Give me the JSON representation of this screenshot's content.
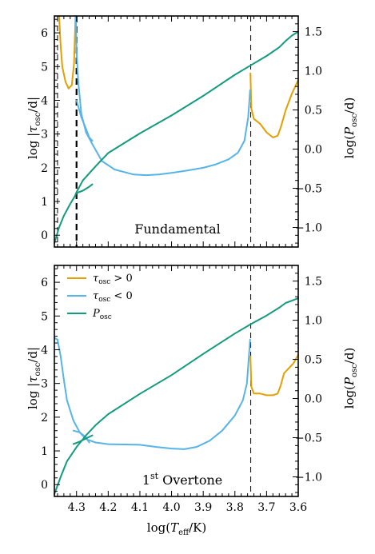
{
  "chart_data": [
    {
      "type": "line",
      "panel": "top",
      "annotation": "Fundamental",
      "xlabel": "log(T_eff/K)",
      "ylabel_left": "log |τ_osc/d|",
      "ylabel_right": "log(P_osc/d)",
      "xlim": [
        4.37,
        3.6
      ],
      "ylim_left": [
        -0.35,
        6.5
      ],
      "ylim_right": [
        -1.25,
        1.7
      ],
      "x_ticks": [
        4.3,
        4.2,
        4.1,
        4.0,
        3.9,
        3.8,
        3.7,
        3.6
      ],
      "y_left_ticks": [
        0,
        1,
        2,
        3,
        4,
        5,
        6
      ],
      "y_right_ticks": [
        -1.0,
        -0.5,
        0.0,
        0.5,
        1.0,
        1.5
      ],
      "vlines": [
        {
          "x": 4.3,
          "style": "dashed-bold"
        },
        {
          "x": 4.36,
          "style": "dashed"
        },
        {
          "x": 3.75,
          "style": "dashed"
        }
      ],
      "series": [
        {
          "name": "τ_osc > 0",
          "color": "#E69F00",
          "axis": "left",
          "segments": [
            [
              [
                4.355,
                6.5
              ],
              [
                4.35,
                5.6
              ],
              [
                4.345,
                5.0
              ],
              [
                4.335,
                4.55
              ],
              [
                4.325,
                4.35
              ],
              [
                4.315,
                4.45
              ],
              [
                4.308,
                5.1
              ],
              [
                4.303,
                6.5
              ]
            ],
            [
              [
                3.751,
                4.8
              ],
              [
                3.748,
                3.75
              ],
              [
                3.74,
                3.45
              ],
              [
                3.72,
                3.3
              ],
              [
                3.7,
                3.05
              ],
              [
                3.68,
                2.9
              ],
              [
                3.665,
                2.95
              ],
              [
                3.655,
                3.2
              ],
              [
                3.64,
                3.7
              ],
              [
                3.62,
                4.2
              ],
              [
                3.6,
                4.6
              ]
            ]
          ]
        },
        {
          "name": "τ_osc < 0",
          "color": "#56B4E9",
          "axis": "left",
          "segments": [
            [
              [
                4.302,
                6.5
              ],
              [
                4.3,
                5.5
              ],
              [
                4.295,
                4.6
              ],
              [
                4.285,
                3.6
              ],
              [
                4.27,
                3.05
              ],
              [
                4.25,
                2.7
              ],
              [
                4.22,
                2.2
              ],
              [
                4.18,
                1.95
              ],
              [
                4.12,
                1.8
              ],
              [
                4.08,
                1.78
              ],
              [
                4.04,
                1.8
              ],
              [
                4.0,
                1.85
              ],
              [
                3.95,
                1.92
              ],
              [
                3.9,
                2.0
              ],
              [
                3.86,
                2.1
              ],
              [
                3.82,
                2.25
              ],
              [
                3.79,
                2.45
              ],
              [
                3.77,
                2.8
              ],
              [
                3.758,
                3.5
              ],
              [
                3.752,
                4.3
              ]
            ],
            [
              [
                4.3,
                4.0
              ],
              [
                4.285,
                3.5
              ],
              [
                4.27,
                3.15
              ],
              [
                4.26,
                2.9
              ],
              [
                4.25,
                2.8
              ]
            ]
          ]
        },
        {
          "name": "P_osc",
          "color": "#129B7F",
          "axis": "right",
          "segments": [
            [
              [
                4.37,
                -1.2
              ],
              [
                4.355,
                -1.0
              ],
              [
                4.34,
                -0.85
              ],
              [
                4.32,
                -0.7
              ],
              [
                4.305,
                -0.6
              ],
              [
                4.3,
                -0.55
              ],
              [
                4.28,
                -0.4
              ],
              [
                4.24,
                -0.22
              ],
              [
                4.2,
                -0.05
              ],
              [
                4.1,
                0.2
              ],
              [
                4.0,
                0.43
              ],
              [
                3.9,
                0.68
              ],
              [
                3.8,
                0.95
              ],
              [
                3.75,
                1.07
              ],
              [
                3.7,
                1.19
              ],
              [
                3.66,
                1.3
              ],
              [
                3.64,
                1.38
              ],
              [
                3.62,
                1.45
              ],
              [
                3.6,
                1.5
              ]
            ],
            [
              [
                4.3,
                -0.56
              ],
              [
                4.28,
                -0.53
              ],
              [
                4.26,
                -0.48
              ],
              [
                4.25,
                -0.45
              ]
            ]
          ]
        }
      ]
    },
    {
      "type": "line",
      "panel": "bottom",
      "annotation": "1st Overtone",
      "xlabel": "log(T_eff/K)",
      "ylabel_left": "log |τ_osc/d|",
      "ylabel_right": "log(P_osc/d)",
      "xlim": [
        4.37,
        3.6
      ],
      "ylim_left": [
        -0.35,
        6.5
      ],
      "ylim_right": [
        -1.25,
        1.7
      ],
      "x_ticks": [
        4.3,
        4.2,
        4.1,
        4.0,
        3.9,
        3.8,
        3.7,
        3.6
      ],
      "y_left_ticks": [
        0,
        1,
        2,
        3,
        4,
        5,
        6
      ],
      "y_right_ticks": [
        -1.0,
        -0.5,
        0.0,
        0.5,
        1.0,
        1.5
      ],
      "vlines": [
        {
          "x": 3.75,
          "style": "dashed"
        }
      ],
      "legend": {
        "placement": "top-left",
        "entries": [
          "τ_osc > 0",
          "τ_osc < 0",
          "P_osc"
        ]
      },
      "series": [
        {
          "name": "τ_osc > 0",
          "color": "#E69F00",
          "axis": "left",
          "segments": [
            [
              [
                3.751,
                3.8
              ],
              [
                3.748,
                2.9
              ],
              [
                3.74,
                2.7
              ],
              [
                3.72,
                2.7
              ],
              [
                3.7,
                2.65
              ],
              [
                3.68,
                2.65
              ],
              [
                3.665,
                2.7
              ],
              [
                3.655,
                2.95
              ],
              [
                3.645,
                3.3
              ],
              [
                3.63,
                3.45
              ],
              [
                3.615,
                3.6
              ],
              [
                3.6,
                3.85
              ]
            ]
          ]
        },
        {
          "name": "τ_osc < 0",
          "color": "#56B4E9",
          "axis": "left",
          "segments": [
            [
              [
                4.37,
                4.35
              ],
              [
                4.36,
                4.3
              ],
              [
                4.35,
                3.8
              ],
              [
                4.34,
                3.1
              ],
              [
                4.33,
                2.5
              ],
              [
                4.31,
                1.9
              ],
              [
                4.29,
                1.55
              ],
              [
                4.27,
                1.35
              ],
              [
                4.24,
                1.25
              ],
              [
                4.2,
                1.2
              ],
              [
                4.1,
                1.18
              ],
              [
                4.05,
                1.12
              ],
              [
                4.0,
                1.07
              ],
              [
                3.96,
                1.05
              ],
              [
                3.92,
                1.12
              ],
              [
                3.88,
                1.3
              ],
              [
                3.84,
                1.6
              ],
              [
                3.8,
                2.05
              ],
              [
                3.775,
                2.5
              ],
              [
                3.762,
                3.0
              ],
              [
                3.752,
                4.3
              ]
            ],
            [
              [
                4.31,
                1.6
              ],
              [
                4.29,
                1.55
              ],
              [
                4.27,
                1.4
              ],
              [
                4.26,
                1.25
              ]
            ]
          ]
        },
        {
          "name": "P_osc",
          "color": "#129B7F",
          "axis": "right",
          "segments": [
            [
              [
                4.37,
                -1.22
              ],
              [
                4.35,
                -1.0
              ],
              [
                4.33,
                -0.8
              ],
              [
                4.3,
                -0.62
              ],
              [
                4.27,
                -0.47
              ],
              [
                4.24,
                -0.34
              ],
              [
                4.2,
                -0.2
              ],
              [
                4.1,
                0.06
              ],
              [
                4.0,
                0.3
              ],
              [
                3.9,
                0.57
              ],
              [
                3.8,
                0.83
              ],
              [
                3.75,
                0.95
              ],
              [
                3.7,
                1.06
              ],
              [
                3.66,
                1.16
              ],
              [
                3.64,
                1.22
              ],
              [
                3.62,
                1.25
              ],
              [
                3.6,
                1.28
              ]
            ],
            [
              [
                4.31,
                -0.58
              ],
              [
                4.29,
                -0.55
              ],
              [
                4.27,
                -0.51
              ],
              [
                4.25,
                -0.47
              ]
            ]
          ]
        }
      ]
    }
  ],
  "labels": {
    "top_annotation": "Fundamental",
    "bottom_annotation_main": "1",
    "bottom_annotation_sup": "st",
    "bottom_annotation_rest": " Overtone",
    "xlabel_main": "log(",
    "xlabel_T": "T",
    "xlabel_sub": "eff",
    "xlabel_rest": "/K)",
    "ylabel_left_prefix": "log |",
    "ylabel_tau": "τ",
    "ylabel_osc": "osc",
    "ylabel_left_suffix": "/d|",
    "ylabel_right_prefix": "log(",
    "ylabel_P": "P",
    "ylabel_right_suffix": "/d)",
    "legend_tau": "τ",
    "legend_osc": "osc",
    "legend_gt": " > 0",
    "legend_lt": " < 0",
    "legend_P": "P"
  }
}
